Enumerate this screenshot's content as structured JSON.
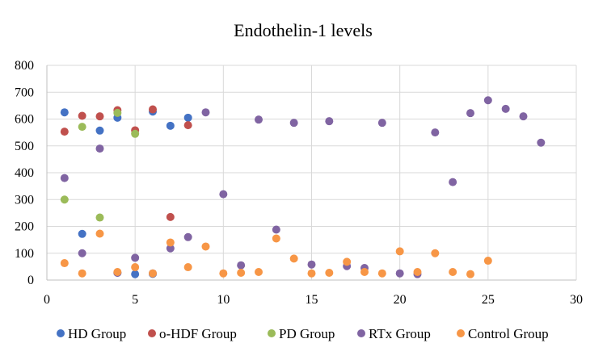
{
  "chart_data": {
    "type": "scatter",
    "title": "Endothelin-1 levels",
    "xlabel": "",
    "ylabel": "",
    "xlim": [
      0,
      30
    ],
    "ylim": [
      0,
      800
    ],
    "x_ticks": [
      0,
      5,
      10,
      15,
      20,
      25,
      30
    ],
    "y_ticks": [
      0,
      100,
      200,
      300,
      400,
      500,
      600,
      700,
      800
    ],
    "grid": true,
    "legend_position": "bottom",
    "series": [
      {
        "name": "HD Group",
        "color": "#4472c4",
        "points": [
          [
            1,
            625
          ],
          [
            2,
            172
          ],
          [
            3,
            557
          ],
          [
            4,
            605
          ],
          [
            4,
            27
          ],
          [
            5,
            22
          ],
          [
            6,
            628
          ],
          [
            6,
            23
          ],
          [
            7,
            575
          ],
          [
            8,
            605
          ]
        ]
      },
      {
        "name": "o-HDF Group",
        "color": "#c0504d",
        "points": [
          [
            1,
            553
          ],
          [
            2,
            612
          ],
          [
            3,
            610
          ],
          [
            4,
            633
          ],
          [
            5,
            558
          ],
          [
            6,
            636
          ],
          [
            7,
            235
          ],
          [
            8,
            577
          ]
        ]
      },
      {
        "name": "PD Group",
        "color": "#9bbb59",
        "points": [
          [
            1,
            300
          ],
          [
            2,
            571
          ],
          [
            3,
            233
          ],
          [
            4,
            623
          ],
          [
            5,
            545
          ]
        ]
      },
      {
        "name": "RTx Group",
        "color": "#8064a2",
        "points": [
          [
            1,
            380
          ],
          [
            2,
            100
          ],
          [
            3,
            490
          ],
          [
            4,
            27
          ],
          [
            5,
            83
          ],
          [
            6,
            25
          ],
          [
            7,
            118
          ],
          [
            8,
            160
          ],
          [
            9,
            625
          ],
          [
            10,
            320
          ],
          [
            11,
            55
          ],
          [
            12,
            598
          ],
          [
            13,
            188
          ],
          [
            14,
            586
          ],
          [
            15,
            58
          ],
          [
            16,
            592
          ],
          [
            17,
            52
          ],
          [
            18,
            45
          ],
          [
            19,
            586
          ],
          [
            20,
            25
          ],
          [
            21,
            22
          ],
          [
            22,
            550
          ],
          [
            23,
            365
          ],
          [
            24,
            622
          ],
          [
            25,
            670
          ],
          [
            26,
            638
          ],
          [
            27,
            610
          ],
          [
            28,
            512
          ]
        ]
      },
      {
        "name": "Control Group",
        "color": "#f79646",
        "points": [
          [
            1,
            63
          ],
          [
            2,
            25
          ],
          [
            3,
            173
          ],
          [
            4,
            30
          ],
          [
            5,
            48
          ],
          [
            6,
            25
          ],
          [
            7,
            140
          ],
          [
            8,
            48
          ],
          [
            9,
            125
          ],
          [
            10,
            25
          ],
          [
            11,
            27
          ],
          [
            12,
            30
          ],
          [
            13,
            155
          ],
          [
            14,
            80
          ],
          [
            15,
            25
          ],
          [
            16,
            27
          ],
          [
            17,
            68
          ],
          [
            18,
            30
          ],
          [
            19,
            25
          ],
          [
            20,
            107
          ],
          [
            21,
            30
          ],
          [
            22,
            100
          ],
          [
            23,
            30
          ],
          [
            24,
            22
          ],
          [
            25,
            72
          ]
        ]
      }
    ]
  }
}
